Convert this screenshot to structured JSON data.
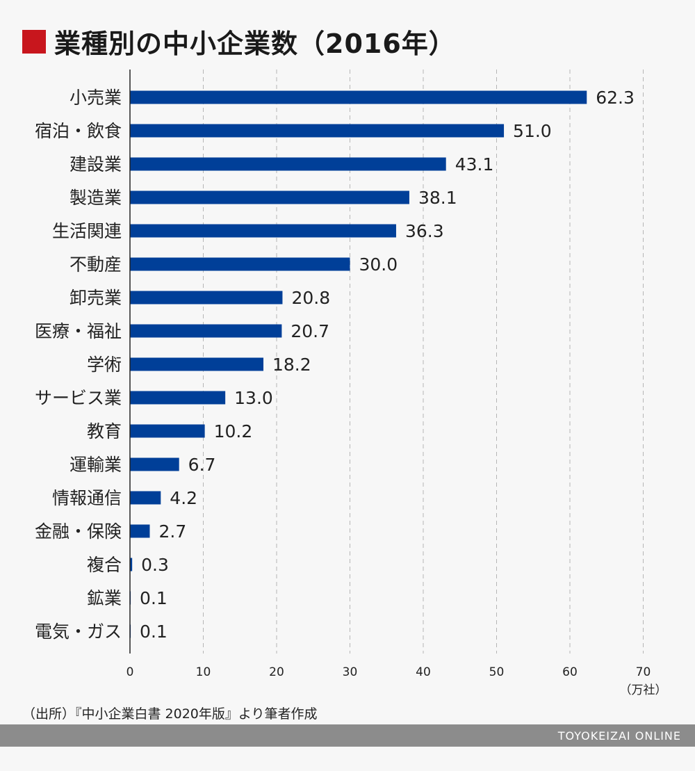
{
  "title": "業種別の中小企業数（2016年）",
  "source": "（出所）『中小企業白書 2020年版』より筆者作成",
  "footer": "TOYOKEIZAI ONLINE",
  "colors": {
    "bar": "#003f98",
    "title_mark": "#c8161d",
    "grid": "#b5b5b5",
    "footer_bg": "#8c8c8c"
  },
  "chart_data": {
    "type": "bar",
    "orientation": "horizontal",
    "categories": [
      "小売業",
      "宿泊・飲食",
      "建設業",
      "製造業",
      "生活関連",
      "不動産",
      "卸売業",
      "医療・福祉",
      "学術",
      "サービス業",
      "教育",
      "運輸業",
      "情報通信",
      "金融・保険",
      "複合",
      "鉱業",
      "電気・ガス"
    ],
    "values": [
      62.3,
      51.0,
      43.1,
      38.1,
      36.3,
      30.0,
      20.8,
      20.7,
      18.2,
      13.0,
      10.2,
      6.7,
      4.2,
      2.7,
      0.3,
      0.1,
      0.1
    ],
    "value_labels": [
      "62.3",
      "51.0",
      "43.1",
      "38.1",
      "36.3",
      "30.0",
      "20.8",
      "20.7",
      "18.2",
      "13.0",
      "10.2",
      "6.7",
      "4.2",
      "2.7",
      "0.3",
      "0.1",
      "0.1"
    ],
    "xlim": [
      0,
      70
    ],
    "xticks": [
      "0",
      "10",
      "20",
      "30",
      "40",
      "50",
      "60",
      "70"
    ],
    "unit": "（万社）",
    "grid": "vertical dashed"
  }
}
